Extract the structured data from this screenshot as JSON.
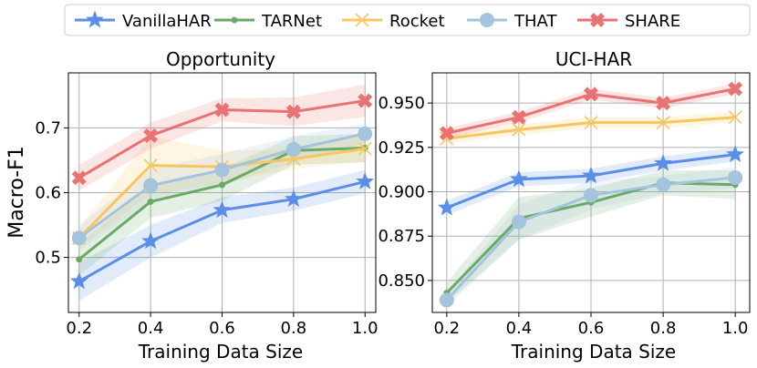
{
  "legend": {
    "placement": "top-center",
    "items": [
      {
        "label": "VanillaHAR",
        "color": "#5b8ee6",
        "marker": "star-icon"
      },
      {
        "label": "TARNet",
        "color": "#6aaa64",
        "marker": "dot-icon"
      },
      {
        "label": "Rocket",
        "color": "#f7c65f",
        "marker": "x-icon"
      },
      {
        "label": "THAT",
        "color": "#a3c4dc",
        "marker": "circle-icon"
      },
      {
        "label": "SHARE",
        "color": "#ea7272",
        "marker": "x-filled-icon"
      }
    ]
  },
  "shared_ylabel": "Macro-F1",
  "chart_data": [
    {
      "type": "line",
      "title": "Opportunity",
      "xlabel": "Training Data Size",
      "ylabel": "Macro-F1",
      "x": [
        0.2,
        0.4,
        0.6,
        0.8,
        1.0
      ],
      "xticks": [
        "0.2",
        "0.4",
        "0.6",
        "0.8",
        "1.0"
      ],
      "xlim": [
        0.17,
        1.03
      ],
      "yticks": [
        0.5,
        0.6,
        0.7
      ],
      "ytick_labels": [
        "0.5",
        "0.6",
        "0.7"
      ],
      "ylim": [
        0.415,
        0.785
      ],
      "grid": true,
      "series": [
        {
          "name": "VanillaHAR",
          "color": "#5b8ee6",
          "marker": "star",
          "values": [
            0.463,
            0.525,
            0.573,
            0.59,
            0.617
          ],
          "band": [
            0.03,
            0.025,
            0.02,
            0.018,
            0.018
          ]
        },
        {
          "name": "TARNet",
          "color": "#6aaa64",
          "marker": "dot",
          "values": [
            0.497,
            0.586,
            0.612,
            0.665,
            0.669
          ],
          "band": [
            0.025,
            0.025,
            0.025,
            0.022,
            0.022
          ]
        },
        {
          "name": "Rocket",
          "color": "#f7c65f",
          "marker": "x",
          "values": [
            0.53,
            0.642,
            0.64,
            0.652,
            0.668
          ],
          "band": [
            0.015,
            0.045,
            0.025,
            0.015,
            0.02
          ]
        },
        {
          "name": "THAT",
          "color": "#a3c4dc",
          "marker": "circle",
          "values": [
            0.53,
            0.611,
            0.635,
            0.667,
            0.691
          ],
          "band": [
            0.02,
            0.025,
            0.025,
            0.02,
            0.015
          ]
        },
        {
          "name": "SHARE",
          "color": "#ea7272",
          "marker": "xfilled",
          "values": [
            0.623,
            0.688,
            0.728,
            0.725,
            0.742
          ],
          "band": [
            0.02,
            0.02,
            0.018,
            0.022,
            0.025
          ]
        }
      ]
    },
    {
      "type": "line",
      "title": "UCI-HAR",
      "xlabel": "Training Data Size",
      "ylabel": "",
      "x": [
        0.2,
        0.4,
        0.6,
        0.8,
        1.0
      ],
      "xticks": [
        "0.2",
        "0.4",
        "0.6",
        "0.8",
        "1.0"
      ],
      "xlim": [
        0.16,
        1.04
      ],
      "yticks": [
        0.85,
        0.875,
        0.9,
        0.925,
        0.95
      ],
      "ytick_labels": [
        "0.850",
        "0.875",
        "0.900",
        "0.925",
        "0.950"
      ],
      "ylim": [
        0.832,
        0.967
      ],
      "grid": true,
      "series": [
        {
          "name": "VanillaHAR",
          "color": "#5b8ee6",
          "marker": "star",
          "values": [
            0.891,
            0.907,
            0.909,
            0.916,
            0.921
          ],
          "band": [
            0.004,
            0.004,
            0.004,
            0.004,
            0.004
          ]
        },
        {
          "name": "TARNet",
          "color": "#6aaa64",
          "marker": "dot",
          "values": [
            0.843,
            0.885,
            0.894,
            0.905,
            0.904
          ],
          "band": [
            0.006,
            0.012,
            0.008,
            0.007,
            0.008
          ]
        },
        {
          "name": "Rocket",
          "color": "#f7c65f",
          "marker": "x",
          "values": [
            0.93,
            0.935,
            0.939,
            0.939,
            0.942
          ],
          "band": [
            0.003,
            0.003,
            0.003,
            0.003,
            0.003
          ]
        },
        {
          "name": "THAT",
          "color": "#a3c4dc",
          "marker": "circle",
          "values": [
            0.839,
            0.883,
            0.898,
            0.904,
            0.908
          ],
          "band": [
            0.004,
            0.01,
            0.008,
            0.005,
            0.006
          ]
        },
        {
          "name": "SHARE",
          "color": "#ea7272",
          "marker": "xfilled",
          "values": [
            0.933,
            0.942,
            0.955,
            0.95,
            0.958
          ],
          "band": [
            0.003,
            0.003,
            0.003,
            0.003,
            0.003
          ]
        }
      ]
    }
  ]
}
